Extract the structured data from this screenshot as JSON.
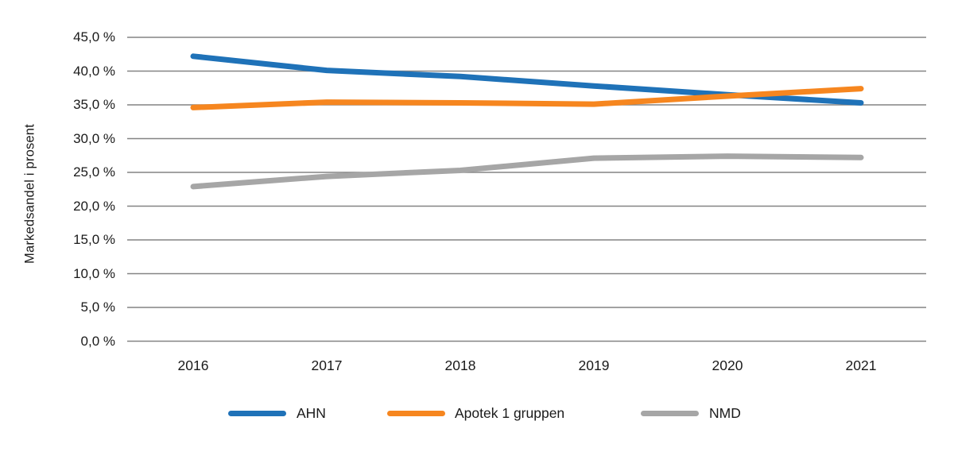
{
  "figure": {
    "background": "#ffffff",
    "text_color": "#1a1a1a",
    "gridline_color": "#848484"
  },
  "chart_data": {
    "type": "line",
    "title": "",
    "xlabel": "",
    "ylabel": "Markedsandel i prosent",
    "x": [
      "2016",
      "2017",
      "2018",
      "2019",
      "2020",
      "2021"
    ],
    "ylim": [
      0,
      45
    ],
    "ytick_step": 5,
    "ytick_labels": [
      "0,0 %",
      "5,0 %",
      "10,0 %",
      "15,0 %",
      "20,0 %",
      "25,0 %",
      "30,0 %",
      "35,0 %",
      "40,0 %",
      "45,0 %"
    ],
    "grid": "horizontal-only",
    "legend_position": "bottom",
    "series": [
      {
        "name": "AHN",
        "color": "#1F72B8",
        "values": [
          42.2,
          40.1,
          39.2,
          37.8,
          36.5,
          35.3
        ]
      },
      {
        "name": "Apotek 1 gruppen",
        "color": "#F6861F",
        "values": [
          34.6,
          35.4,
          35.3,
          35.1,
          36.3,
          37.4
        ]
      },
      {
        "name": "NMD",
        "color": "#A6A6A6",
        "values": [
          22.9,
          24.4,
          25.3,
          27.1,
          27.4,
          27.2
        ]
      }
    ]
  }
}
